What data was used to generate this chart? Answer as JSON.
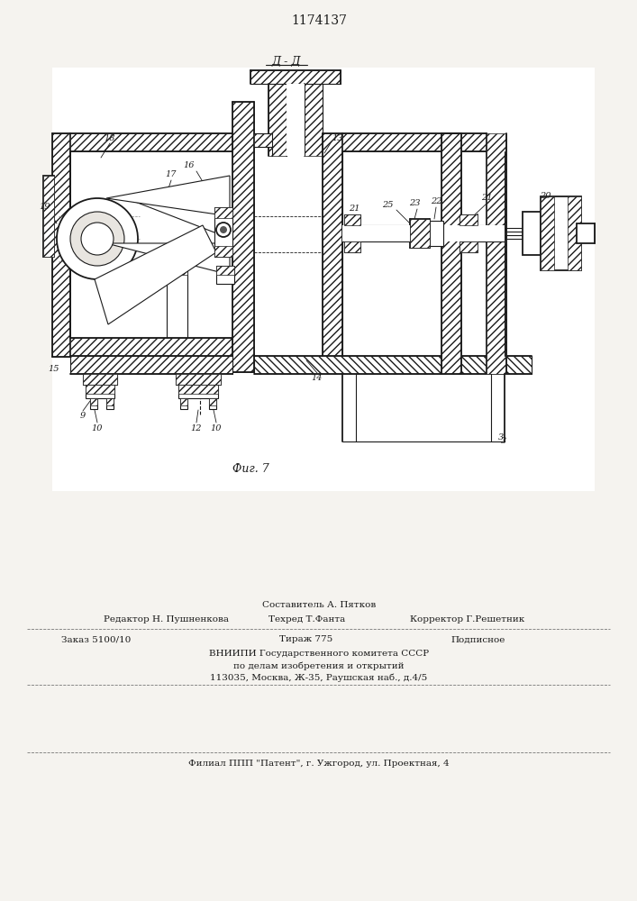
{
  "title": "1174137",
  "fig_caption": "Фиг. 7",
  "section_label": "Д - Д",
  "bg_color": "#f5f3ef",
  "line_color": "#1a1a1a",
  "footer": {
    "sestavitel": "Составитель А. Пятков",
    "redaktor": "Редактор Н. Пушненкова",
    "tehred": "Техред Т.Фанта",
    "korrektor": "Корректор Г.Решетник",
    "zakaz": "Заказ 5100/10",
    "tirazh": "Тираж 775",
    "podpisnoe": "Подписное",
    "vniipи": "ВНИИПИ Государственного комитета СССР",
    "po_delam": "по делам изобретения и открытий",
    "address": "113035, Москва, Ж-35, Раушская наб., д.4/5",
    "filial": "Филиал ППП \"Патент\", г. Ужгород, ул. Проектная, 4"
  }
}
